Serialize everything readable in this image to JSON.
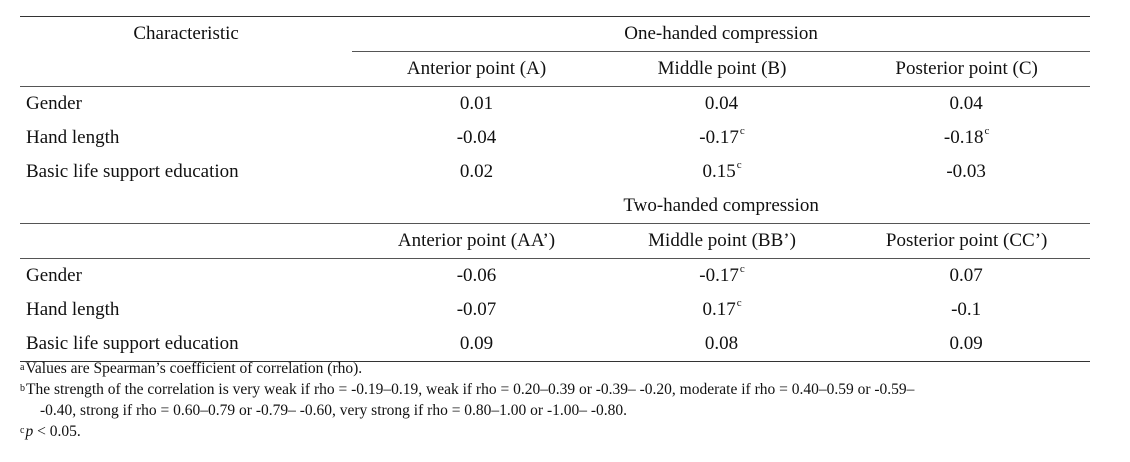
{
  "header": {
    "characteristic": "Characteristic",
    "group1": "One-handed compression",
    "group2": "Two-handed compression",
    "cols1": [
      "Anterior point (A)",
      "Middle point (B)",
      "Posterior point (C)"
    ],
    "cols2": [
      "Anterior point (AA’)",
      "Middle point (BB’)",
      "Posterior point (CC’)"
    ]
  },
  "one_handed": [
    {
      "label": "Gender",
      "a": "0.01",
      "b": "0.04",
      "b_sup": "",
      "c": "0.04",
      "c_sup": ""
    },
    {
      "label": "Hand length",
      "a": "-0.04",
      "b": "-0.17",
      "b_sup": "c",
      "c": "-0.18",
      "c_sup": "c"
    },
    {
      "label": "Basic life support education",
      "a": "0.02",
      "b": "0.15",
      "b_sup": "c",
      "c": "-0.03",
      "c_sup": ""
    }
  ],
  "two_handed": [
    {
      "label": "Gender",
      "a": "-0.06",
      "b": "-0.17",
      "b_sup": "c",
      "c": "0.07",
      "c_sup": ""
    },
    {
      "label": "Hand length",
      "a": "-0.07",
      "b": "0.17",
      "b_sup": "c",
      "c": "-0.1",
      "c_sup": ""
    },
    {
      "label": "Basic life support education",
      "a": "0.09",
      "b": "0.08",
      "b_sup": "",
      "c": "0.09",
      "c_sup": ""
    }
  ],
  "footnotes": {
    "a_mark": "a",
    "a_text": "Values are Spearman’s coefficient of correlation (rho).",
    "b_mark": "b",
    "b_text_1": "The strength of the correlation is very weak if rho = -0.19–0.19, weak if rho = 0.20–0.39 or -0.39– -0.20, moderate if rho = 0.40–0.59 or -0.59–",
    "b_text_2": "-0.40, strong if rho = 0.60–0.79 or -0.79– -0.60, very strong if rho = 0.80–1.00 or -1.00– -0.80.",
    "c_mark": "c",
    "c_p": "p",
    "c_text": " < 0.05."
  }
}
